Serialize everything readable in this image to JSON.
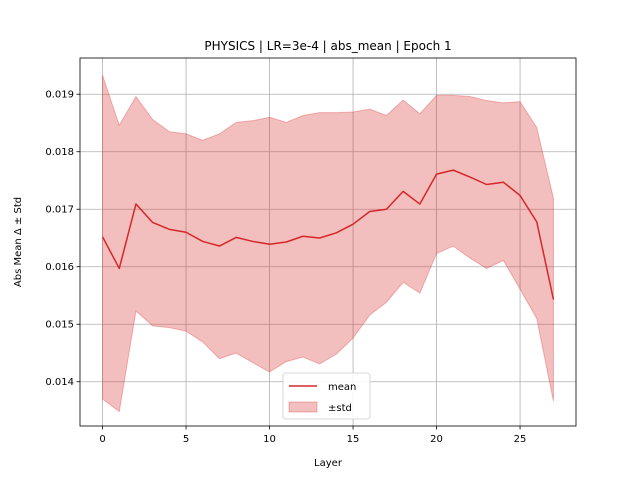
{
  "chart_data": {
    "type": "line",
    "title": "PHYSICS | LR=3e-4 | abs_mean | Epoch 1",
    "xlabel": "Layer",
    "ylabel": "Abs Mean Δ ± Std",
    "xlim": [
      -1.35,
      28.35
    ],
    "ylim": [
      0.01323,
      0.01963
    ],
    "xticks": [
      0,
      5,
      10,
      15,
      20,
      25
    ],
    "yticks": [
      0.014,
      0.015,
      0.016,
      0.017,
      0.018,
      0.019
    ],
    "ytick_labels": [
      "0.014",
      "0.015",
      "0.016",
      "0.017",
      "0.018",
      "0.019"
    ],
    "grid": true,
    "legend_position": "lower-center",
    "x": [
      0,
      1,
      2,
      3,
      4,
      5,
      6,
      7,
      8,
      9,
      10,
      11,
      12,
      13,
      14,
      15,
      16,
      17,
      18,
      19,
      20,
      21,
      22,
      23,
      24,
      25,
      26,
      27
    ],
    "series": [
      {
        "name": "mean",
        "kind": "line",
        "color": "#d62728",
        "values": [
          0.01652,
          0.01597,
          0.01709,
          0.01677,
          0.01665,
          0.0166,
          0.01644,
          0.01636,
          0.01651,
          0.01644,
          0.01639,
          0.01643,
          0.01653,
          0.0165,
          0.01659,
          0.01674,
          0.01696,
          0.017,
          0.01731,
          0.01709,
          0.01761,
          0.01768,
          0.01756,
          0.01743,
          0.01747,
          0.01724,
          0.01678,
          0.01543
        ]
      },
      {
        "name": "±std",
        "kind": "band",
        "color": "#d62728",
        "lower": [
          0.0137,
          0.01348,
          0.01523,
          0.01497,
          0.01494,
          0.01488,
          0.01469,
          0.0144,
          0.0145,
          0.01433,
          0.01417,
          0.01435,
          0.01443,
          0.01431,
          0.01448,
          0.01476,
          0.01516,
          0.01538,
          0.01573,
          0.01554,
          0.01623,
          0.01636,
          0.01615,
          0.01597,
          0.01611,
          0.01561,
          0.0151,
          0.01366
        ],
        "upper": [
          0.01933,
          0.01846,
          0.01896,
          0.01856,
          0.01835,
          0.01831,
          0.0182,
          0.01831,
          0.01851,
          0.01854,
          0.0186,
          0.01851,
          0.01863,
          0.01868,
          0.01868,
          0.01869,
          0.01874,
          0.01863,
          0.0189,
          0.01866,
          0.01898,
          0.01898,
          0.01896,
          0.01889,
          0.01885,
          0.01887,
          0.01842,
          0.01719
        ]
      }
    ]
  }
}
